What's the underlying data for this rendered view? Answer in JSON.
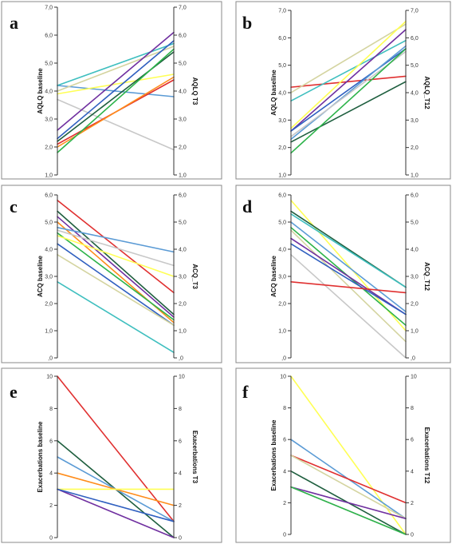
{
  "chart_data": [
    {
      "type": "line",
      "panel": "a",
      "left_label": "AQLQ baseline",
      "right_label": "AQLQ T3",
      "ylim": [
        1,
        7
      ],
      "ticks": [
        1,
        2,
        3,
        4,
        5,
        6,
        7
      ],
      "tick_labels": [
        "1,0",
        "2,0",
        "3,0",
        "4,0",
        "5,0",
        "6,0",
        "7,0"
      ],
      "series": [
        {
          "color": "#5b9bd5",
          "values": [
            4.2,
            3.8
          ]
        },
        {
          "color": "#3fbfbf",
          "values": [
            4.2,
            5.7
          ]
        },
        {
          "color": "#d4d4a0",
          "values": [
            4.0,
            5.6
          ]
        },
        {
          "color": "#c8c8c8",
          "values": [
            3.7,
            1.9
          ]
        },
        {
          "color": "#ffff55",
          "values": [
            3.9,
            4.6
          ]
        },
        {
          "color": "#7030a0",
          "values": [
            2.6,
            6.1
          ]
        },
        {
          "color": "#3060c0",
          "values": [
            2.3,
            5.8
          ]
        },
        {
          "color": "#1f5f3f",
          "values": [
            2.2,
            5.4
          ]
        },
        {
          "color": "#e03030",
          "values": [
            2.1,
            4.4
          ]
        },
        {
          "color": "#ff8c1a",
          "values": [
            2.0,
            4.5
          ]
        },
        {
          "color": "#2db34a",
          "values": [
            1.8,
            5.5
          ]
        }
      ]
    },
    {
      "type": "line",
      "panel": "b",
      "left_label": "AQLQ baseline",
      "right_label": "AQLQ_T12",
      "ylim": [
        1,
        7
      ],
      "ticks": [
        1,
        2,
        3,
        4,
        5,
        6,
        7
      ],
      "tick_labels": [
        "1,0",
        "2,0",
        "3,0",
        "4,0",
        "5,0",
        "6,0",
        "7,0"
      ],
      "series": [
        {
          "color": "#e03030",
          "values": [
            4.2,
            4.6
          ]
        },
        {
          "color": "#d4d4a0",
          "values": [
            4.0,
            6.5
          ]
        },
        {
          "color": "#3fbfbf",
          "values": [
            3.7,
            5.9
          ]
        },
        {
          "color": "#ffff55",
          "values": [
            2.7,
            6.6
          ]
        },
        {
          "color": "#7030a0",
          "values": [
            2.6,
            6.3
          ]
        },
        {
          "color": "#3060c0",
          "values": [
            2.6,
            5.6
          ]
        },
        {
          "color": "#5b9bd5",
          "values": [
            2.3,
            5.7
          ]
        },
        {
          "color": "#c8c8c8",
          "values": [
            2.4,
            5.5
          ]
        },
        {
          "color": "#1f5f3f",
          "values": [
            2.2,
            4.4
          ]
        },
        {
          "color": "#2db34a",
          "values": [
            1.8,
            5.6
          ]
        }
      ]
    },
    {
      "type": "line",
      "panel": "c",
      "left_label": "ACQ baseline",
      "right_label": "ACQ_T3",
      "ylim": [
        0,
        6
      ],
      "ticks": [
        0,
        1,
        2,
        3,
        4,
        5,
        6
      ],
      "tick_labels": [
        ",0",
        "1,0",
        "2,0",
        "3,0",
        "4,0",
        "5,0",
        "6,0"
      ],
      "series": [
        {
          "color": "#e03030",
          "values": [
            5.8,
            2.4
          ]
        },
        {
          "color": "#1f5f3f",
          "values": [
            5.4,
            1.6
          ]
        },
        {
          "color": "#7030a0",
          "values": [
            5.2,
            1.5
          ]
        },
        {
          "color": "#ff8c1a",
          "values": [
            5.0,
            1.3
          ]
        },
        {
          "color": "#5b9bd5",
          "values": [
            4.8,
            3.9
          ]
        },
        {
          "color": "#2db34a",
          "values": [
            4.6,
            1.4
          ]
        },
        {
          "color": "#ffff55",
          "values": [
            4.5,
            3.0
          ]
        },
        {
          "color": "#3060c0",
          "values": [
            4.2,
            1.2
          ]
        },
        {
          "color": "#d4d4a0",
          "values": [
            3.8,
            1.2
          ]
        },
        {
          "color": "#c8c8c8",
          "values": [
            4.7,
            3.4
          ]
        },
        {
          "color": "#3fbfbf",
          "values": [
            2.8,
            0.2
          ]
        }
      ]
    },
    {
      "type": "line",
      "panel": "d",
      "left_label": "ACQ baseline",
      "right_label": "ACQ_T12",
      "ylim": [
        0,
        6
      ],
      "ticks": [
        0,
        1,
        2,
        3,
        4,
        5,
        6
      ],
      "tick_labels": [
        ",0",
        "1,0",
        "2,0",
        "3,0",
        "4,0",
        "5,0",
        "6,0"
      ],
      "series": [
        {
          "color": "#ffff55",
          "values": [
            5.8,
            1.0
          ]
        },
        {
          "color": "#1f5f3f",
          "values": [
            5.4,
            2.6
          ]
        },
        {
          "color": "#3fbfbf",
          "values": [
            5.3,
            2.6
          ]
        },
        {
          "color": "#5b9bd5",
          "values": [
            5.0,
            1.7
          ]
        },
        {
          "color": "#2db34a",
          "values": [
            4.8,
            1.2
          ]
        },
        {
          "color": "#d4d4a0",
          "values": [
            4.7,
            0.6
          ]
        },
        {
          "color": "#7030a0",
          "values": [
            4.4,
            1.6
          ]
        },
        {
          "color": "#3060c0",
          "values": [
            4.2,
            1.6
          ]
        },
        {
          "color": "#c8c8c8",
          "values": [
            3.8,
            0.0
          ]
        },
        {
          "color": "#e03030",
          "values": [
            2.8,
            2.4
          ]
        }
      ]
    },
    {
      "type": "line",
      "panel": "e",
      "left_label": "Exacerbations baseline",
      "right_label": "Exacerbations T3",
      "ylim": [
        0,
        10
      ],
      "ticks": [
        0,
        2,
        4,
        6,
        8,
        10
      ],
      "tick_labels": [
        "0",
        "2",
        "4",
        "6",
        "8",
        "10"
      ],
      "series": [
        {
          "color": "#e03030",
          "values": [
            10,
            1
          ]
        },
        {
          "color": "#1f5f3f",
          "values": [
            6,
            0
          ]
        },
        {
          "color": "#5b9bd5",
          "values": [
            5,
            1
          ]
        },
        {
          "color": "#ff8c1a",
          "values": [
            4,
            2
          ]
        },
        {
          "color": "#ffff55",
          "values": [
            3,
            3
          ]
        },
        {
          "color": "#7030a0",
          "values": [
            3,
            0
          ]
        },
        {
          "color": "#3060c0",
          "values": [
            3,
            1
          ]
        }
      ]
    },
    {
      "type": "line",
      "panel": "f",
      "left_label": "Exacerbations baseline",
      "right_label": "Exacerbations T12",
      "ylim": [
        0,
        10
      ],
      "ticks": [
        0,
        2,
        4,
        6,
        8,
        10
      ],
      "tick_labels": [
        "0",
        "2",
        "4",
        "6",
        "8",
        "10"
      ],
      "series": [
        {
          "color": "#ffff55",
          "values": [
            10,
            0
          ]
        },
        {
          "color": "#5b9bd5",
          "values": [
            6,
            1
          ]
        },
        {
          "color": "#e03030",
          "values": [
            5,
            2
          ]
        },
        {
          "color": "#d4d4a0",
          "values": [
            5,
            1
          ]
        },
        {
          "color": "#1f5f3f",
          "values": [
            4,
            0
          ]
        },
        {
          "color": "#7030a0",
          "values": [
            3,
            1
          ]
        },
        {
          "color": "#c8c8c8",
          "values": [
            3,
            0
          ]
        },
        {
          "color": "#2db34a",
          "values": [
            3,
            0
          ]
        }
      ]
    }
  ]
}
